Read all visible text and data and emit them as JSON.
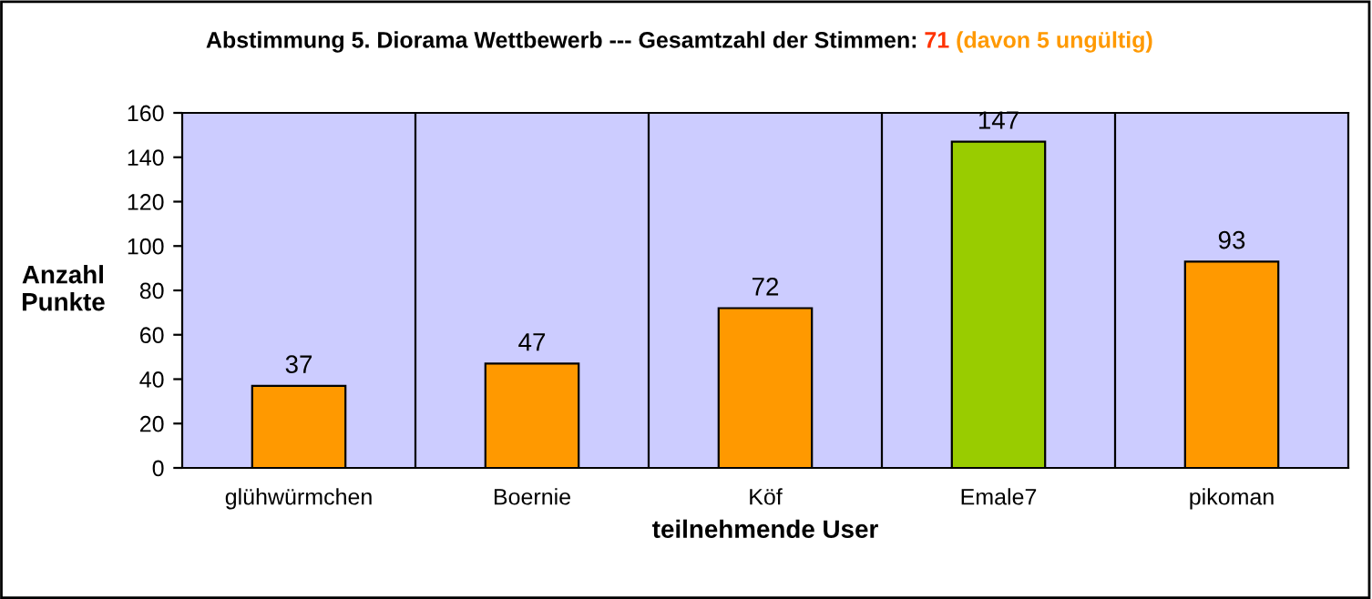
{
  "chart_data": {
    "type": "bar",
    "title": "Abstimmung 5. Diorama Wettbewerb --- Gesamtzahl der Stimmen:",
    "annotations": [
      "71",
      "(davon 5 ungültig)"
    ],
    "xlabel": "teilnehmende User",
    "ylabel": "Anzahl\nPunkte",
    "categories": [
      "glühwürmchen",
      "Boernie",
      "Köf",
      "Emale7",
      "pikoman"
    ],
    "values": [
      37,
      47,
      72,
      147,
      93
    ],
    "colors": [
      "#ff9900",
      "#ff9900",
      "#ff9900",
      "#99cc00",
      "#ff9900"
    ],
    "ylim": [
      0,
      160
    ],
    "yticks": [
      0,
      20,
      40,
      60,
      80,
      100,
      120,
      140,
      160
    ],
    "grid": "x",
    "data_labels": true,
    "legend": false
  }
}
